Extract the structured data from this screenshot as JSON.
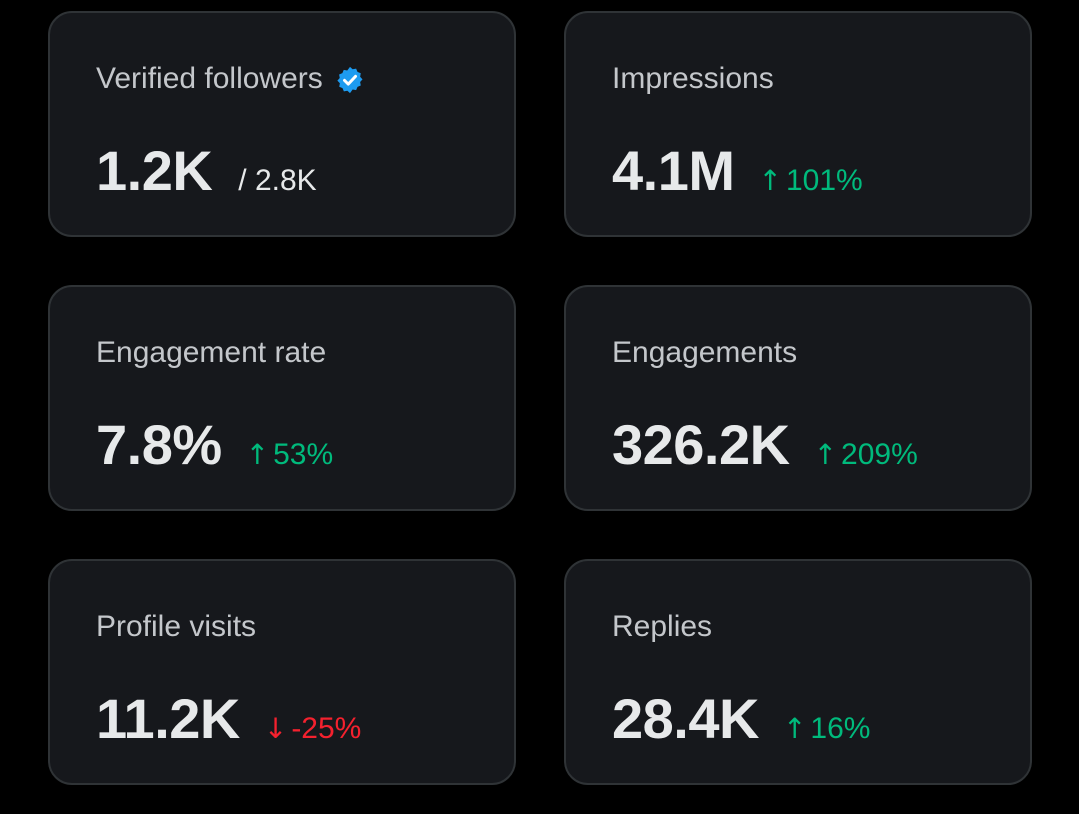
{
  "colors": {
    "background": "#000000",
    "card": "#16181c",
    "card_border": "#2f3336",
    "label": "#c4c7cb",
    "value": "#e7e9ea",
    "positive": "#00ba7c",
    "negative": "#f4212e",
    "verified_badge": "#1d9bf0"
  },
  "cards": [
    {
      "label": "Verified followers",
      "icon": "verified-badge-icon",
      "value": "1.2K",
      "secondary": "/ 2.8K"
    },
    {
      "label": "Impressions",
      "value": "4.1M",
      "delta": {
        "direction": "up",
        "arrow": "↑",
        "text": "101%"
      }
    },
    {
      "label": "Engagement rate",
      "value": "7.8%",
      "delta": {
        "direction": "up",
        "arrow": "↑",
        "text": "53%"
      }
    },
    {
      "label": "Engagements",
      "value": "326.2K",
      "delta": {
        "direction": "up",
        "arrow": "↑",
        "text": "209%"
      }
    },
    {
      "label": "Profile visits",
      "value": "11.2K",
      "delta": {
        "direction": "down",
        "arrow": "↓",
        "text": "-25%"
      }
    },
    {
      "label": "Replies",
      "value": "28.4K",
      "delta": {
        "direction": "up",
        "arrow": "↑",
        "text": "16%"
      }
    }
  ]
}
